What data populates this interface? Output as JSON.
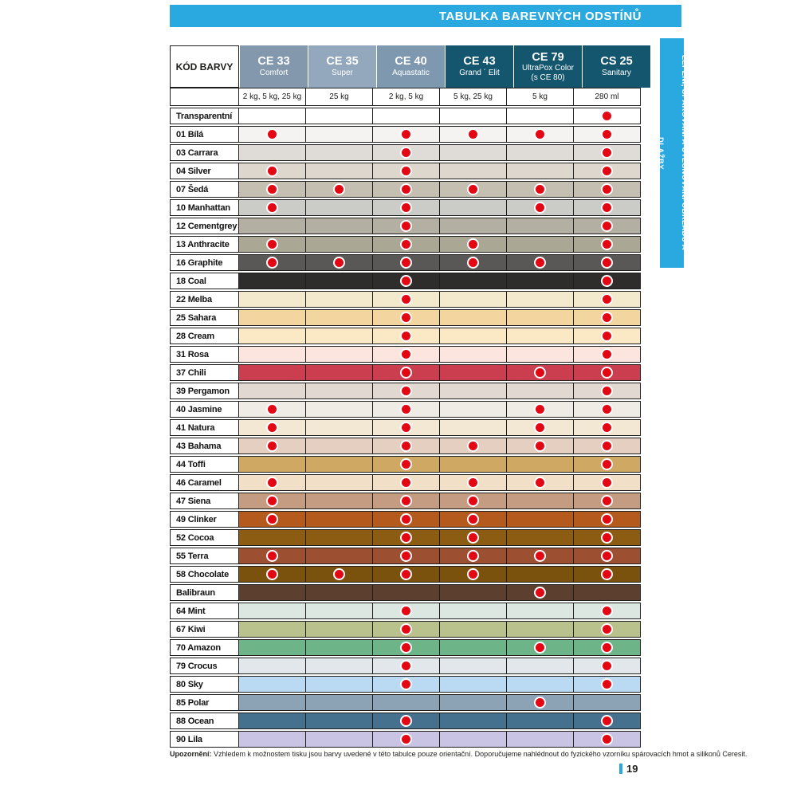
{
  "page": {
    "title": "TABULKA BAREVNÝCH ODSTÍNŮ",
    "sidebar_text": "LEPENÍ, SPÁROVÁNÍ A UTĚSŇOVÁNÍ OBKLADŮ A DLAŽBY",
    "page_number": "19",
    "footnote_label": "Upozornění:",
    "footnote_text": " Vzhledem k možnostem tisku jsou barvy uvedené v této tabulce pouze orientační. Doporučujeme nahlédnout do fyzického vzorníku spárovacích hmot a silikonů Ceresit.",
    "accent_blue": "#29a9e0",
    "dot_red": "#e30613",
    "border_color": "#1d1d1b"
  },
  "table": {
    "corner_label": "KÓD BARVY",
    "columns": [
      {
        "code": "CE 33",
        "name": "Comfort",
        "name2": "",
        "packages": "2 kg, 5 kg, 25 kg",
        "header_bg": "#8398ac"
      },
      {
        "code": "CE 35",
        "name": "Super",
        "name2": "",
        "packages": "25 kg",
        "header_bg": "#93a7bd"
      },
      {
        "code": "CE 40",
        "name": "Aquastatic",
        "name2": "",
        "packages": "2 kg, 5 kg",
        "header_bg": "#7e99af"
      },
      {
        "code": "CE 43",
        "name": "Grand ´ Elit",
        "name2": "",
        "packages": "5 kg, 25 kg",
        "header_bg": "#15566f"
      },
      {
        "code": "CE 79",
        "name": "UltraPox Color",
        "name2": "(s CE 80)",
        "packages": "5 kg",
        "header_bg": "#15566f"
      },
      {
        "code": "CS 25",
        "name": "Sanitary",
        "name2": "",
        "packages": "280 ml",
        "header_bg": "#15566f"
      }
    ],
    "rows": [
      {
        "label": "Transparentní",
        "color": "#ffffff",
        "dots": [
          0,
          0,
          0,
          0,
          0,
          1
        ]
      },
      {
        "label": "01 Bílá",
        "color": "#f4f3f1",
        "dots": [
          1,
          0,
          1,
          1,
          1,
          1
        ]
      },
      {
        "label": "03 Carrara",
        "color": "#dfdbd7",
        "dots": [
          0,
          0,
          1,
          0,
          0,
          1
        ]
      },
      {
        "label": "04 Silver",
        "color": "#ded7ce",
        "dots": [
          1,
          0,
          1,
          0,
          0,
          1
        ]
      },
      {
        "label": "07 Šedá",
        "color": "#c5bfb2",
        "dots": [
          1,
          1,
          1,
          1,
          1,
          1
        ]
      },
      {
        "label": "10 Manhattan",
        "color": "#cbcbc7",
        "dots": [
          1,
          0,
          1,
          0,
          1,
          1
        ]
      },
      {
        "label": "12 Cementgrey",
        "color": "#b3afa2",
        "dots": [
          0,
          0,
          1,
          0,
          0,
          1
        ]
      },
      {
        "label": "13 Anthracite",
        "color": "#aba795",
        "dots": [
          1,
          0,
          1,
          1,
          0,
          1
        ]
      },
      {
        "label": "16 Graphite",
        "color": "#5a5856",
        "dots": [
          1,
          1,
          1,
          1,
          1,
          1
        ]
      },
      {
        "label": "18 Coal",
        "color": "#2e2d2b",
        "dots": [
          0,
          0,
          1,
          0,
          0,
          1
        ]
      },
      {
        "label": "22 Melba",
        "color": "#f3e9cc",
        "dots": [
          0,
          0,
          1,
          0,
          0,
          1
        ]
      },
      {
        "label": "25 Sahara",
        "color": "#f3d5a0",
        "dots": [
          0,
          0,
          1,
          0,
          0,
          1
        ]
      },
      {
        "label": "28 Cream",
        "color": "#fae9c4",
        "dots": [
          0,
          0,
          1,
          0,
          0,
          1
        ]
      },
      {
        "label": "31 Rosa",
        "color": "#fce4df",
        "dots": [
          0,
          0,
          1,
          0,
          0,
          1
        ]
      },
      {
        "label": "37 Chili",
        "color": "#cb3e50",
        "dots": [
          0,
          0,
          1,
          0,
          1,
          1
        ]
      },
      {
        "label": "39 Pergamon",
        "color": "#e1d9d1",
        "dots": [
          0,
          0,
          1,
          0,
          0,
          1
        ]
      },
      {
        "label": "40 Jasmine",
        "color": "#efece5",
        "dots": [
          1,
          0,
          1,
          0,
          1,
          1
        ]
      },
      {
        "label": "41 Natura",
        "color": "#f2e8d3",
        "dots": [
          1,
          0,
          1,
          0,
          1,
          1
        ]
      },
      {
        "label": "43 Bahama",
        "color": "#e5cfc0",
        "dots": [
          1,
          0,
          1,
          1,
          1,
          1
        ]
      },
      {
        "label": "44 Toffi",
        "color": "#cfa963",
        "dots": [
          0,
          0,
          1,
          0,
          0,
          1
        ]
      },
      {
        "label": "46 Caramel",
        "color": "#f1e0c7",
        "dots": [
          1,
          0,
          1,
          1,
          1,
          1
        ]
      },
      {
        "label": "47 Siena",
        "color": "#c49c82",
        "dots": [
          1,
          0,
          1,
          1,
          0,
          1
        ]
      },
      {
        "label": "49 Clinker",
        "color": "#b55a1d",
        "dots": [
          1,
          0,
          1,
          1,
          0,
          1
        ]
      },
      {
        "label": "52 Cocoa",
        "color": "#8b5c12",
        "dots": [
          0,
          0,
          1,
          1,
          0,
          1
        ]
      },
      {
        "label": "55 Terra",
        "color": "#9d5031",
        "dots": [
          1,
          0,
          1,
          1,
          1,
          1
        ]
      },
      {
        "label": "58 Chocolate",
        "color": "#7a520d",
        "dots": [
          1,
          1,
          1,
          1,
          0,
          1
        ]
      },
      {
        "label": "Balibraun",
        "color": "#5c3f2e",
        "dots": [
          0,
          0,
          0,
          0,
          1,
          0
        ]
      },
      {
        "label": "64 Mint",
        "color": "#dde7e1",
        "dots": [
          0,
          0,
          1,
          0,
          0,
          1
        ]
      },
      {
        "label": "67 Kiwi",
        "color": "#b9c28d",
        "dots": [
          0,
          0,
          1,
          0,
          0,
          1
        ]
      },
      {
        "label": "70 Amazon",
        "color": "#6db489",
        "dots": [
          0,
          0,
          1,
          0,
          1,
          1
        ]
      },
      {
        "label": "79 Crocus",
        "color": "#e1e7eb",
        "dots": [
          0,
          0,
          1,
          0,
          0,
          1
        ]
      },
      {
        "label": "80 Sky",
        "color": "#badaf3",
        "dots": [
          0,
          0,
          1,
          0,
          0,
          1
        ]
      },
      {
        "label": "85 Polar",
        "color": "#8ba3b5",
        "dots": [
          0,
          0,
          0,
          0,
          1,
          0
        ]
      },
      {
        "label": "88 Ocean",
        "color": "#45718f",
        "dots": [
          0,
          0,
          1,
          0,
          0,
          1
        ]
      },
      {
        "label": "90 Lila",
        "color": "#cac4e4",
        "dots": [
          0,
          0,
          1,
          0,
          0,
          1
        ]
      }
    ]
  }
}
